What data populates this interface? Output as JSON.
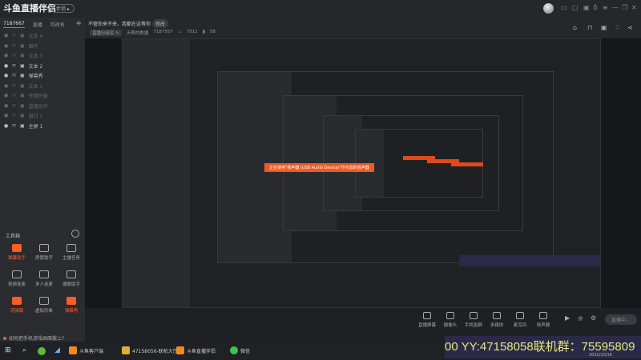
{
  "app": {
    "logo": "斗鱼直播伴侣",
    "badge": "伴侣 ▸"
  },
  "sidebar": {
    "tabs": [
      "7187667",
      "直播",
      "可改名"
    ],
    "plus": "+",
    "layers": [
      {
        "label": "文本 4",
        "visible": false
      },
      {
        "label": "图片",
        "visible": false
      },
      {
        "label": "文本 3",
        "visible": false
      },
      {
        "label": "文本 2",
        "visible": true
      },
      {
        "label": "弹幕秀",
        "visible": true
      },
      {
        "label": "文本 1",
        "visible": false
      },
      {
        "label": "关键护盾",
        "visible": false
      },
      {
        "label": "直播玩伴",
        "visible": false
      },
      {
        "label": "窗口 1",
        "visible": false
      },
      {
        "label": "全屏 1",
        "visible": true
      }
    ],
    "toolbox_title": "工具箱",
    "tools": [
      {
        "label": "弹幕助手",
        "hot": true
      },
      {
        "label": "房管助手",
        "hot": false
      },
      {
        "label": "主播任务",
        "hot": false
      },
      {
        "label": "视频连麦",
        "hot": false
      },
      {
        "label": "多人连麦",
        "hot": false
      },
      {
        "label": "搜歌助手",
        "hot": false
      },
      {
        "label": "流弹幕",
        "hot": true
      },
      {
        "label": "虚拟形象",
        "hot": false
      },
      {
        "label": "弹幕秀",
        "hot": true
      }
    ],
    "notice": "如何把手机游戏画面搬上?"
  },
  "header": {
    "slogan": "不管你来不来，我都在这等你",
    "modify": "修改",
    "group": "直播分组名 ✎",
    "stat_label": "天帮的数据",
    "stat_value": "7187557",
    "hot": "7511",
    "fans": "58"
  },
  "banner": "正在使用\"扬声器 (USB Audio Device)\"作为您的扬声器",
  "bottombar": {
    "items": [
      "直播屏幕",
      "摄像头",
      "手机投屏",
      "多媒体",
      "麦克风",
      "扬声器"
    ],
    "live": "直播中..."
  },
  "ticker": "00  YY:47158058联机群：75595809",
  "date": "2022/10/16",
  "taskbar": [
    "斗鱼客户端",
    "47158056-联机大厅",
    "斗鱼直播伴侣",
    "微信"
  ],
  "colors": {
    "accent": "#ff5d23",
    "ticker_text": "#e8e87a"
  }
}
